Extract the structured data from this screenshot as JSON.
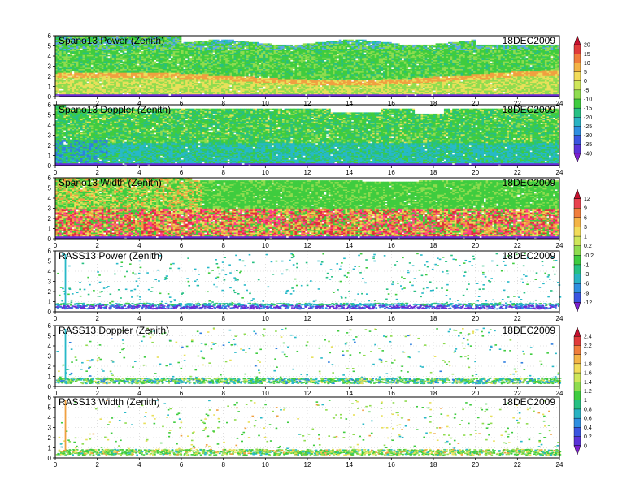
{
  "date_label": "18DEC2009",
  "chart_data": {
    "type": "heatmap",
    "panels": [
      {
        "title": "Spano13 Power (Zenith)",
        "kind": "spano",
        "pattern": "power",
        "scale": "A"
      },
      {
        "title": "Spano13 Doppler (Zenith)",
        "kind": "spano",
        "pattern": "doppler",
        "scale": "A"
      },
      {
        "title": "Spano13 Width (Zenith)",
        "kind": "spano",
        "pattern": "width",
        "scale": "B"
      },
      {
        "title": "RASS13 Power (Zenith)",
        "kind": "rass",
        "pattern": "rpower",
        "scale": "B"
      },
      {
        "title": "RASS13 Doppler (Zenith)",
        "kind": "rass",
        "pattern": "rdoppler",
        "scale": "C"
      },
      {
        "title": "RASS13 Width (Zenith)",
        "kind": "rass",
        "pattern": "rwidth",
        "scale": "C"
      }
    ],
    "x_ticks": [
      "0",
      "2",
      "4",
      "6",
      "8",
      "10",
      "12",
      "14",
      "16",
      "18",
      "20",
      "22",
      "24"
    ],
    "y_ticks": [
      "0",
      "1",
      "2",
      "3",
      "4",
      "5",
      "6"
    ],
    "xlim": [
      0,
      24
    ],
    "ylim": [
      0,
      6
    ],
    "colorbars": [
      {
        "id": "A",
        "labels": [
          "20",
          "15",
          "10",
          "5",
          "0",
          "-5",
          "-10",
          "-15",
          "-20",
          "-25",
          "-30",
          "-35",
          "-40"
        ],
        "colors": [
          "#c8102e",
          "#e03b3b",
          "#f07d3c",
          "#f4b446",
          "#f2dc5a",
          "#cfe65a",
          "#8fdc4f",
          "#3fcc3f",
          "#27c083",
          "#2ab3c2",
          "#2f8fe0",
          "#3a55e0",
          "#5a33d8",
          "#7e1fd0"
        ]
      },
      {
        "id": "B",
        "labels": [
          "12",
          "9",
          "6",
          "3",
          "1",
          "0.2",
          "-0.2",
          "-1",
          "-3",
          "-6",
          "-9",
          "-12"
        ],
        "colors": [
          "#c8102e",
          "#e8424e",
          "#f07d3c",
          "#f4b446",
          "#f2dc5a",
          "#cfe65a",
          "#8fdc4f",
          "#3fcc3f",
          "#27c083",
          "#2ab3c2",
          "#2f8fe0",
          "#3a55e0",
          "#7e1fd0"
        ]
      },
      {
        "id": "C",
        "labels": [
          "2.4",
          "2.2",
          "2",
          "1.8",
          "1.6",
          "1.4",
          "1.2",
          "1",
          "0.8",
          "0.6",
          "0.4",
          "0.2",
          "0"
        ],
        "colors": [
          "#c8102e",
          "#e03b3b",
          "#f07d3c",
          "#f4b446",
          "#f2dc5a",
          "#cfe65a",
          "#8fdc4f",
          "#3fcc3f",
          "#27c083",
          "#2ab3c2",
          "#2f8fe0",
          "#3a55e0",
          "#5a33d8",
          "#7e1fd0"
        ]
      }
    ],
    "grid": true
  }
}
